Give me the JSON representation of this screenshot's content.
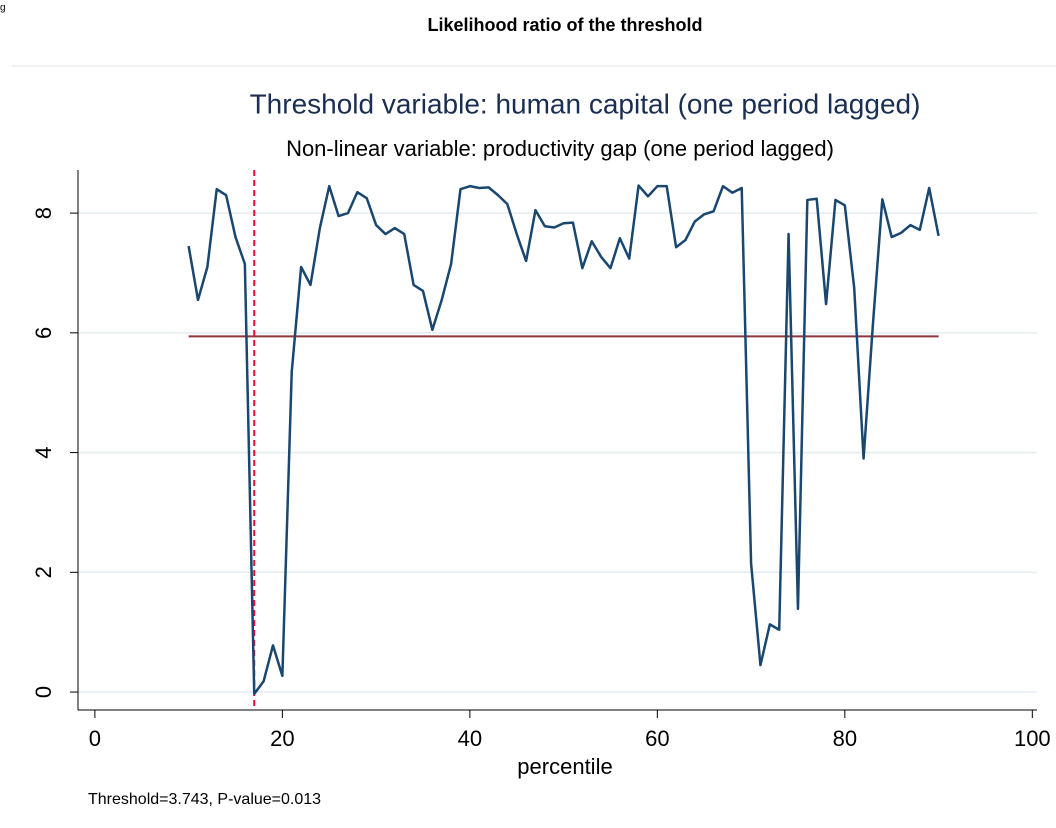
{
  "header": {
    "corner": "g",
    "title": "Likelihood ratio of the threshold"
  },
  "chart_data": {
    "type": "line",
    "title": "Threshold variable: human capital (one period lagged)",
    "subtitle": "Non-linear variable: productivity gap (one period lagged)",
    "x_label": "percentile",
    "note": "Threshold=3.743, P-value=0.013",
    "x": [
      10,
      11,
      12,
      13,
      14,
      15,
      16,
      17,
      18,
      19,
      20,
      21,
      22,
      23,
      24,
      25,
      26,
      27,
      28,
      29,
      30,
      31,
      32,
      33,
      34,
      35,
      36,
      37,
      38,
      39,
      40,
      41,
      42,
      43,
      44,
      45,
      46,
      47,
      48,
      49,
      50,
      51,
      52,
      53,
      54,
      55,
      56,
      57,
      58,
      59,
      60,
      61,
      62,
      63,
      64,
      65,
      66,
      67,
      68,
      69,
      70,
      71,
      72,
      73,
      74,
      75,
      76,
      77,
      78,
      79,
      80,
      81,
      82,
      83,
      84,
      85,
      86,
      87,
      88,
      89,
      90
    ],
    "series": [
      {
        "color": "#1a476f",
        "values": [
          7.45,
          6.55,
          7.1,
          8.4,
          8.3,
          7.6,
          7.15,
          -0.03,
          0.18,
          0.78,
          0.27,
          5.35,
          7.1,
          6.8,
          7.75,
          8.45,
          7.95,
          8.0,
          8.35,
          8.25,
          7.8,
          7.65,
          7.75,
          7.65,
          6.8,
          6.7,
          6.05,
          6.55,
          7.15,
          8.4,
          8.45,
          8.42,
          8.43,
          8.3,
          8.15,
          7.65,
          7.2,
          8.05,
          7.78,
          7.76,
          7.83,
          7.84,
          7.08,
          7.53,
          7.27,
          7.08,
          7.58,
          7.24,
          8.46,
          8.28,
          8.45,
          8.45,
          7.43,
          7.55,
          7.86,
          7.98,
          8.03,
          8.45,
          8.34,
          8.42,
          2.15,
          0.45,
          1.13,
          1.04,
          7.65,
          1.39,
          8.22,
          8.24,
          6.48,
          8.22,
          8.13,
          6.75,
          3.9,
          6.15,
          8.23,
          7.6,
          7.67,
          7.8,
          7.72,
          8.42,
          7.62
        ]
      }
    ],
    "reference_y": {
      "value": 5.94,
      "color": "#90353b"
    },
    "reference_x": {
      "value": 17,
      "color": "#e8103a"
    },
    "xlim": [
      -1.8,
      100.5
    ],
    "ylim": [
      -0.3,
      8.72
    ],
    "xticks": [
      0,
      20,
      40,
      60,
      80,
      100
    ],
    "yticks": [
      0,
      2,
      4,
      6,
      8
    ],
    "grid": true
  }
}
